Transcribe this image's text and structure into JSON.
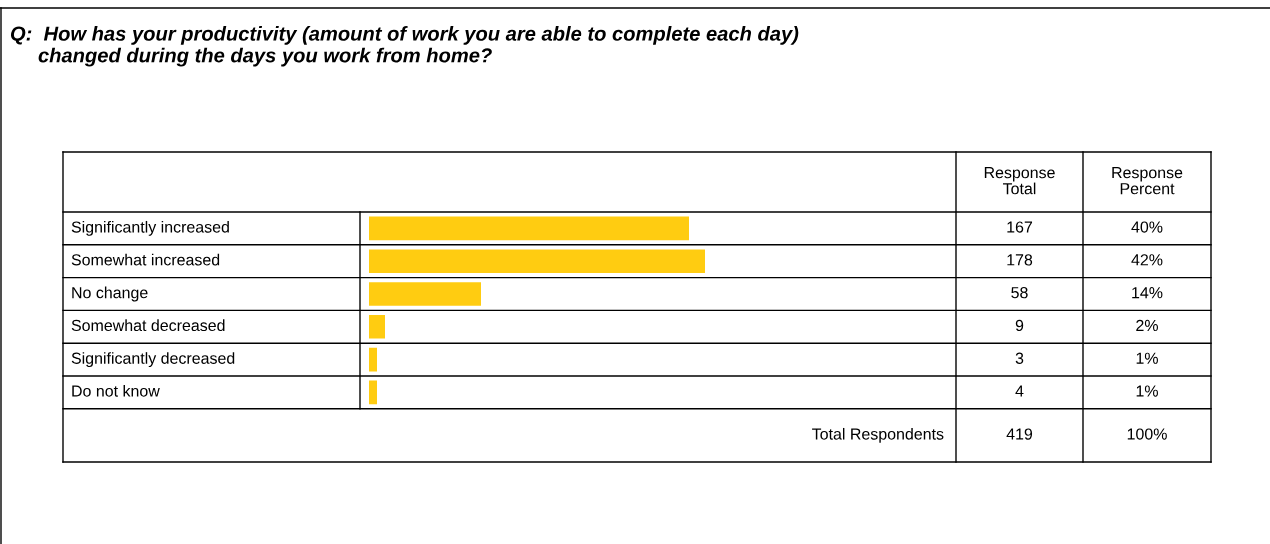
{
  "chart_data": {
    "type": "bar",
    "orientation": "horizontal",
    "title": "Q:  How has your productivity (amount of work you are able to complete each day)\n     changed during the days you work from home?",
    "categories": [
      "Significantly increased",
      "Somewhat increased",
      "No change",
      "Somewhat decreased",
      "Significantly decreased",
      "Do not know"
    ],
    "values": [
      40,
      42,
      14,
      2,
      1,
      1
    ],
    "color": "#ffcc11",
    "tick_labels": false,
    "value_labels": [
      "40%",
      "42%",
      "14%",
      "2%",
      "1%",
      "1%"
    ],
    "annotations": [
      "Response\nTotal",
      "Response\nPercent",
      "Total Respondents",
      "419",
      "100%",
      "167",
      "178",
      "58",
      "9",
      "3",
      "4"
    ]
  }
}
